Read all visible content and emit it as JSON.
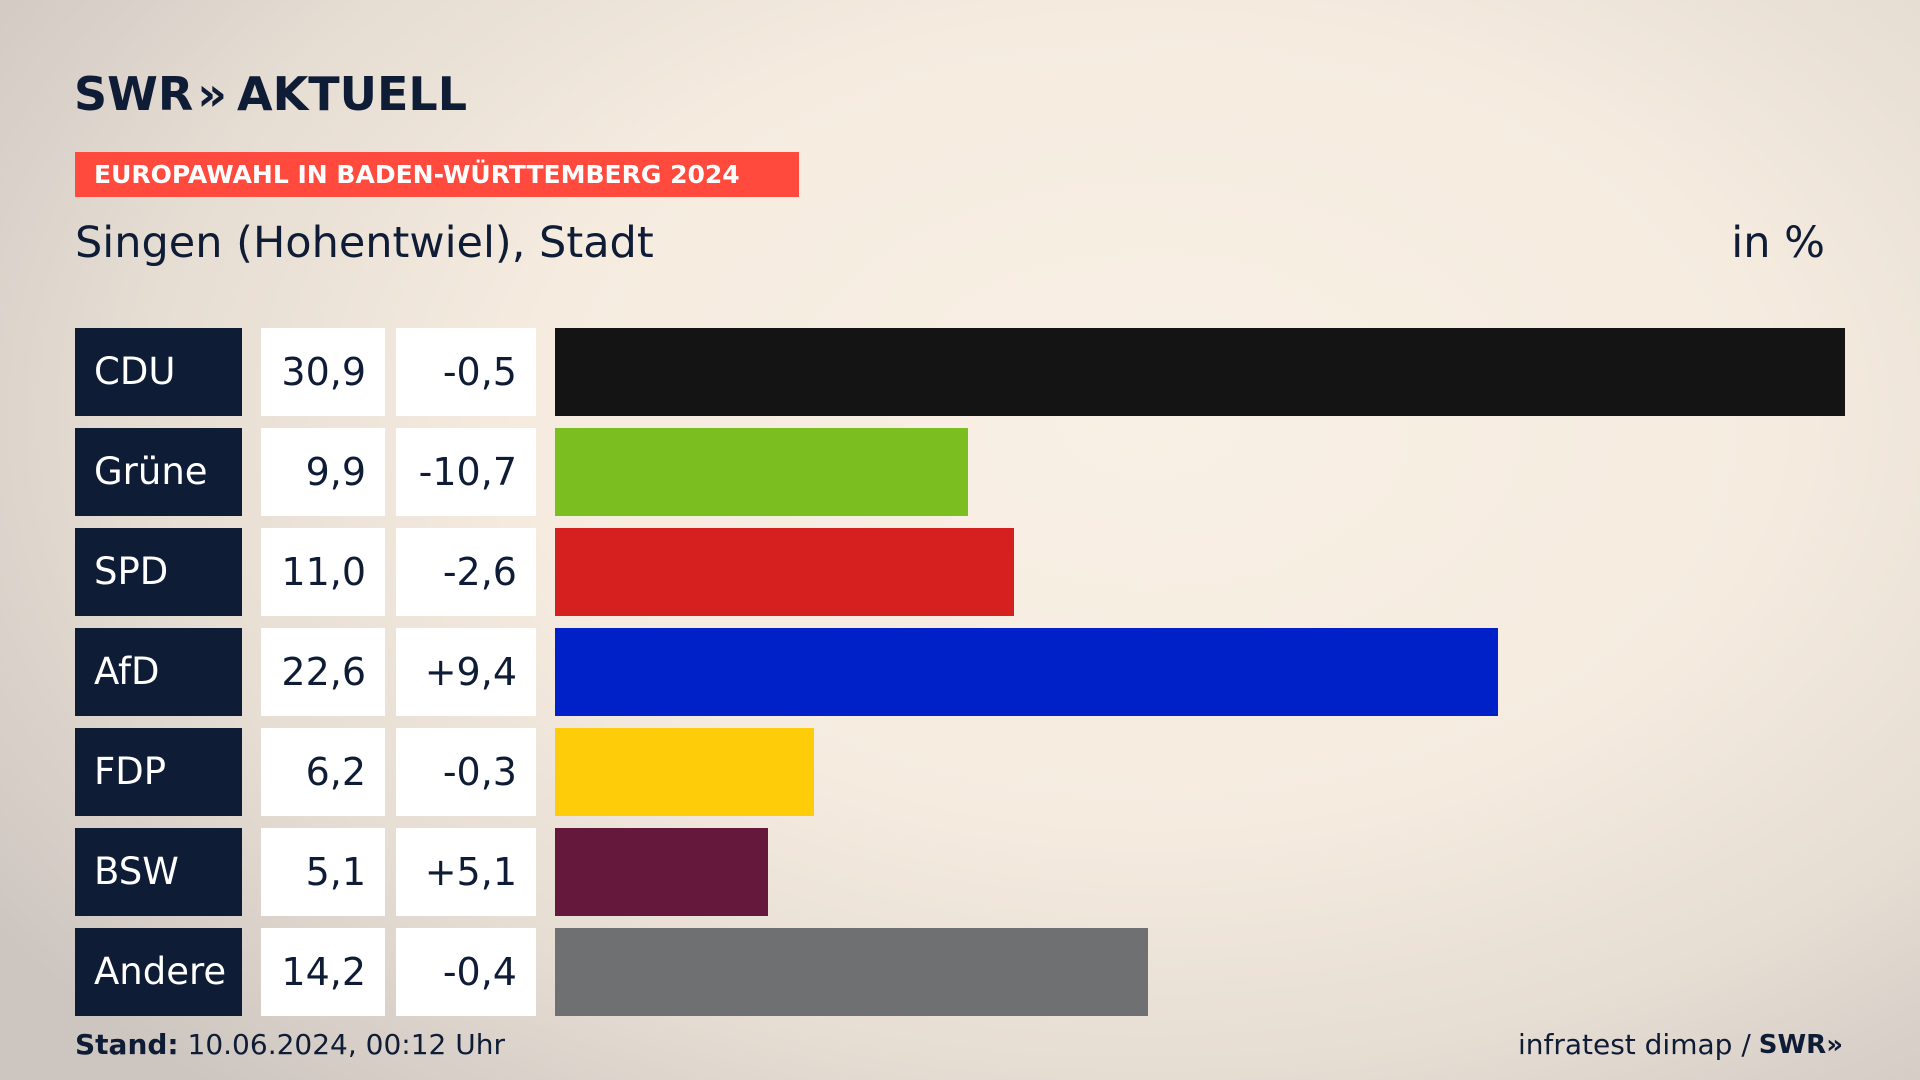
{
  "brand": {
    "name": "SWR",
    "product": "AKTUELL",
    "chevrons": "»"
  },
  "kicker": "EUROPAWAHL IN BADEN-WÜRTTEMBERG 2024",
  "subtitle": "Singen (Hohentwiel), Stadt",
  "unit": "in %",
  "footer": {
    "stand_label": "Stand:",
    "stand_value": "10.06.2024, 00:12 Uhr",
    "source": "infratest dimap /",
    "source_logo": "SWR»"
  },
  "colors": {
    "navy": "#0f1c36",
    "kicker_bg": "#ff4a3d"
  },
  "chart_data": {
    "type": "bar",
    "orientation": "horizontal",
    "categories": [
      "CDU",
      "Grüne",
      "SPD",
      "AfD",
      "FDP",
      "BSW",
      "Andere"
    ],
    "values": [
      30.9,
      9.9,
      11.0,
      22.6,
      6.2,
      5.1,
      14.2
    ],
    "value_labels": [
      "30,9",
      "9,9",
      "11,0",
      "22,6",
      "6,2",
      "5,1",
      "14,2"
    ],
    "diff_labels": [
      "-0,5",
      "-10,7",
      "-2,6",
      "+9,4",
      "-0,3",
      "+5,1",
      "-0,4"
    ],
    "colors": [
      "#141414",
      "#7abe1f",
      "#d61f1f",
      "#0020c8",
      "#ffcc0a",
      "#66183c",
      "#6f7072"
    ],
    "xlim": [
      0,
      30.9
    ],
    "title": "Singen (Hohentwiel), Stadt",
    "unit": "in %"
  }
}
